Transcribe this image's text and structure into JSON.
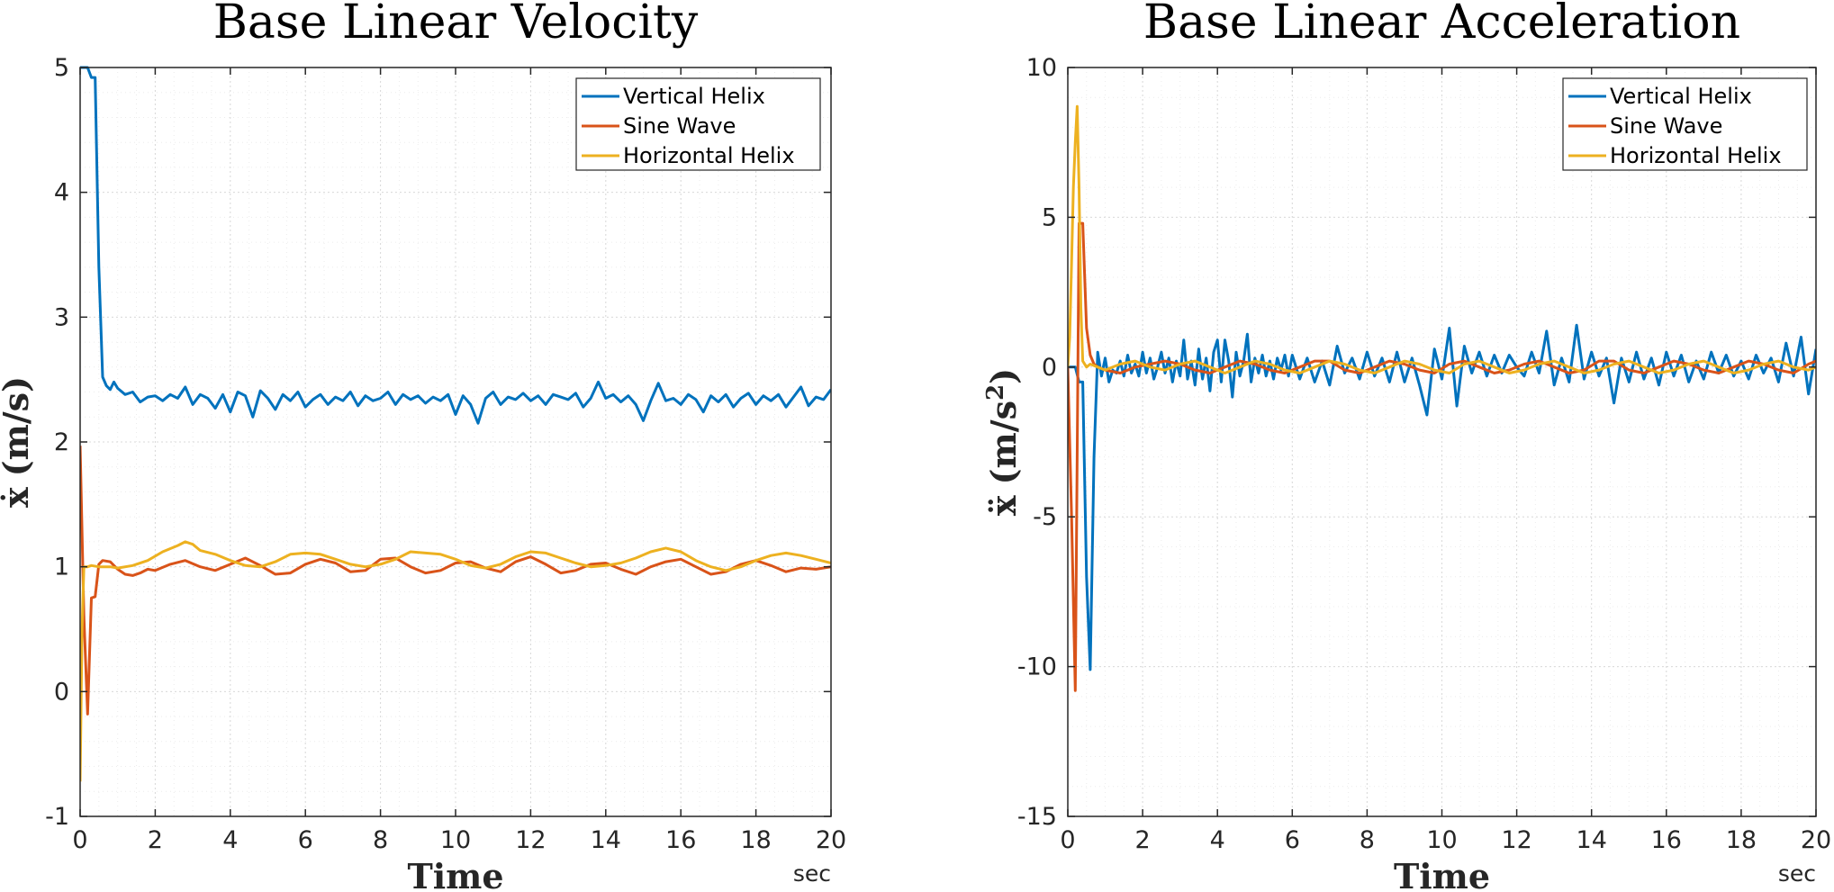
{
  "chart_data": [
    {
      "type": "line",
      "title": "Base Linear Velocity",
      "xlabel": "Time",
      "xunit": "sec",
      "ylabel_symbol": "ẋ",
      "ylabel_unit": "(m/s)",
      "xlim": [
        0,
        20
      ],
      "ylim": [
        -1,
        5
      ],
      "xticks": [
        0,
        2,
        4,
        6,
        8,
        10,
        12,
        14,
        16,
        18,
        20
      ],
      "yticks": [
        -1,
        0,
        1,
        2,
        3,
        4,
        5
      ],
      "grid": true,
      "legend_position": "top-right",
      "series": [
        {
          "name": "Vertical Helix",
          "color": "#0072BD",
          "x": [
            0,
            0.1,
            0.2,
            0.3,
            0.4,
            0.5,
            0.6,
            0.7,
            0.8,
            0.9,
            1.0,
            1.2,
            1.4,
            1.6,
            1.8,
            2.0,
            2.2,
            2.4,
            2.6,
            2.8,
            3.0,
            3.2,
            3.4,
            3.6,
            3.8,
            4.0,
            4.2,
            4.4,
            4.6,
            4.8,
            5.0,
            5.2,
            5.4,
            5.6,
            5.8,
            6.0,
            6.2,
            6.4,
            6.6,
            6.8,
            7.0,
            7.2,
            7.4,
            7.6,
            7.8,
            8.0,
            8.2,
            8.4,
            8.6,
            8.8,
            9.0,
            9.2,
            9.4,
            9.6,
            9.8,
            10.0,
            10.2,
            10.4,
            10.6,
            10.8,
            11.0,
            11.2,
            11.4,
            11.6,
            11.8,
            12.0,
            12.2,
            12.4,
            12.6,
            12.8,
            13.0,
            13.2,
            13.4,
            13.6,
            13.8,
            14.0,
            14.2,
            14.4,
            14.6,
            14.8,
            15.0,
            15.2,
            15.4,
            15.6,
            15.8,
            16.0,
            16.2,
            16.4,
            16.6,
            16.8,
            17.0,
            17.2,
            17.4,
            17.6,
            17.8,
            18.0,
            18.2,
            18.4,
            18.6,
            18.8,
            19.0,
            19.2,
            19.4,
            19.6,
            19.8,
            20.0
          ],
          "y": [
            5.0,
            5.0,
            5.0,
            4.92,
            4.92,
            3.4,
            2.52,
            2.45,
            2.42,
            2.48,
            2.43,
            2.38,
            2.4,
            2.32,
            2.36,
            2.37,
            2.33,
            2.38,
            2.35,
            2.44,
            2.3,
            2.38,
            2.35,
            2.27,
            2.38,
            2.24,
            2.4,
            2.37,
            2.2,
            2.41,
            2.35,
            2.26,
            2.38,
            2.33,
            2.4,
            2.28,
            2.34,
            2.38,
            2.3,
            2.36,
            2.33,
            2.4,
            2.29,
            2.37,
            2.33,
            2.35,
            2.4,
            2.3,
            2.38,
            2.34,
            2.37,
            2.31,
            2.36,
            2.33,
            2.38,
            2.22,
            2.37,
            2.3,
            2.15,
            2.35,
            2.4,
            2.3,
            2.36,
            2.34,
            2.39,
            2.33,
            2.37,
            2.3,
            2.38,
            2.36,
            2.34,
            2.39,
            2.28,
            2.35,
            2.48,
            2.35,
            2.38,
            2.32,
            2.37,
            2.3,
            2.17,
            2.33,
            2.47,
            2.33,
            2.35,
            2.3,
            2.38,
            2.34,
            2.24,
            2.37,
            2.32,
            2.38,
            2.28,
            2.35,
            2.39,
            2.3,
            2.37,
            2.33,
            2.38,
            2.28,
            2.36,
            2.44,
            2.29,
            2.36,
            2.34,
            2.42
          ]
        },
        {
          "name": "Sine Wave",
          "color": "#D95319",
          "x": [
            0,
            0.1,
            0.2,
            0.3,
            0.4,
            0.5,
            0.6,
            0.8,
            1.0,
            1.2,
            1.4,
            1.6,
            1.8,
            2.0,
            2.4,
            2.8,
            3.2,
            3.6,
            4.0,
            4.4,
            4.8,
            5.2,
            5.6,
            6.0,
            6.4,
            6.8,
            7.2,
            7.6,
            8.0,
            8.4,
            8.8,
            9.2,
            9.6,
            10.0,
            10.4,
            10.8,
            11.2,
            11.6,
            12.0,
            12.4,
            12.8,
            13.2,
            13.6,
            14.0,
            14.4,
            14.8,
            15.2,
            15.6,
            16.0,
            16.4,
            16.8,
            17.2,
            17.6,
            18.0,
            18.4,
            18.8,
            19.2,
            19.6,
            20.0
          ],
          "y": [
            1.97,
            0.6,
            -0.18,
            0.75,
            0.76,
            1.02,
            1.05,
            1.04,
            0.98,
            0.94,
            0.93,
            0.95,
            0.98,
            0.97,
            1.02,
            1.05,
            1.0,
            0.97,
            1.02,
            1.07,
            1.01,
            0.94,
            0.95,
            1.02,
            1.06,
            1.03,
            0.96,
            0.97,
            1.06,
            1.07,
            1.0,
            0.95,
            0.97,
            1.03,
            1.04,
            0.99,
            0.96,
            1.04,
            1.08,
            1.02,
            0.95,
            0.97,
            1.02,
            1.03,
            0.98,
            0.94,
            1.0,
            1.04,
            1.06,
            1.0,
            0.94,
            0.96,
            1.02,
            1.05,
            1.01,
            0.96,
            0.99,
            0.98,
            1.0
          ]
        },
        {
          "name": "Horizontal Helix",
          "color": "#EDB120",
          "x": [
            0,
            0.05,
            0.1,
            0.2,
            0.3,
            0.5,
            0.8,
            1.0,
            1.4,
            1.8,
            2.2,
            2.6,
            2.8,
            3.0,
            3.2,
            3.6,
            4.0,
            4.4,
            4.8,
            5.2,
            5.6,
            6.0,
            6.4,
            6.8,
            7.2,
            7.6,
            8.0,
            8.4,
            8.8,
            9.2,
            9.6,
            10.0,
            10.4,
            10.8,
            11.2,
            11.6,
            12.0,
            12.4,
            12.8,
            13.2,
            13.6,
            14.0,
            14.4,
            14.8,
            15.2,
            15.6,
            16.0,
            16.4,
            16.8,
            17.2,
            17.6,
            18.0,
            18.4,
            18.8,
            19.2,
            19.6,
            20.0
          ],
          "y": [
            -0.72,
            0.5,
            1.0,
            1.0,
            1.01,
            1.0,
            1.0,
            0.99,
            1.01,
            1.05,
            1.12,
            1.17,
            1.2,
            1.18,
            1.13,
            1.1,
            1.05,
            1.01,
            1.0,
            1.04,
            1.1,
            1.11,
            1.1,
            1.06,
            1.02,
            1.0,
            1.02,
            1.06,
            1.12,
            1.11,
            1.1,
            1.06,
            1.01,
            0.99,
            1.02,
            1.08,
            1.12,
            1.11,
            1.07,
            1.03,
            1.0,
            1.01,
            1.03,
            1.07,
            1.12,
            1.15,
            1.12,
            1.05,
            1.0,
            0.97,
            1.0,
            1.05,
            1.09,
            1.11,
            1.09,
            1.06,
            1.03
          ]
        }
      ]
    },
    {
      "type": "line",
      "title": "Base Linear Acceleration",
      "xlabel": "Time",
      "xunit": "sec",
      "ylabel_symbol": "ẍ",
      "ylabel_unit": "(m/s",
      "ylabel_unit_sup": "2",
      "ylabel_unit_close": ")",
      "xlim": [
        0,
        20
      ],
      "ylim": [
        -15,
        10
      ],
      "xticks": [
        0,
        2,
        4,
        6,
        8,
        10,
        12,
        14,
        16,
        18,
        20
      ],
      "yticks": [
        -15,
        -10,
        -5,
        0,
        5,
        10
      ],
      "grid": true,
      "legend_position": "top-right",
      "series": [
        {
          "name": "Vertical Helix",
          "color": "#0072BD",
          "x": [
            0,
            0.1,
            0.2,
            0.3,
            0.4,
            0.5,
            0.6,
            0.7,
            0.8,
            0.9,
            1.0,
            1.1,
            1.2,
            1.3,
            1.4,
            1.5,
            1.6,
            1.7,
            1.8,
            1.9,
            2.0,
            2.1,
            2.2,
            2.3,
            2.4,
            2.5,
            2.6,
            2.7,
            2.8,
            2.9,
            3.0,
            3.1,
            3.2,
            3.3,
            3.4,
            3.5,
            3.6,
            3.7,
            3.8,
            3.9,
            4.0,
            4.1,
            4.2,
            4.3,
            4.4,
            4.5,
            4.6,
            4.7,
            4.8,
            4.9,
            5.0,
            5.1,
            5.2,
            5.3,
            5.4,
            5.5,
            5.6,
            5.7,
            5.8,
            5.9,
            6.0,
            6.2,
            6.4,
            6.6,
            6.8,
            7.0,
            7.2,
            7.4,
            7.6,
            7.8,
            8.0,
            8.2,
            8.4,
            8.6,
            8.8,
            9.0,
            9.2,
            9.4,
            9.6,
            9.8,
            10.0,
            10.2,
            10.4,
            10.6,
            10.8,
            11.0,
            11.2,
            11.4,
            11.6,
            11.8,
            12.0,
            12.2,
            12.4,
            12.6,
            12.8,
            13.0,
            13.2,
            13.4,
            13.6,
            13.8,
            14.0,
            14.2,
            14.4,
            14.6,
            14.8,
            15.0,
            15.2,
            15.4,
            15.6,
            15.8,
            16.0,
            16.2,
            16.4,
            16.6,
            16.8,
            17.0,
            17.2,
            17.4,
            17.6,
            17.8,
            18.0,
            18.2,
            18.4,
            18.6,
            18.8,
            19.0,
            19.2,
            19.4,
            19.6,
            19.8,
            20.0
          ],
          "y": [
            0,
            0,
            0,
            -0.5,
            -0.5,
            -7.0,
            -10.1,
            -3.0,
            0.5,
            -0.3,
            0.3,
            -0.5,
            -0.1,
            -0.2,
            0.2,
            -0.3,
            0.4,
            -0.2,
            0.1,
            -0.3,
            0.5,
            -0.2,
            0.3,
            -0.4,
            0.0,
            0.5,
            -0.2,
            0.3,
            -0.5,
            0.2,
            -0.3,
            0.9,
            -0.4,
            0.2,
            -0.6,
            0.6,
            -0.4,
            0.3,
            -0.8,
            0.5,
            0.9,
            -0.5,
            0.9,
            0.2,
            -1.0,
            0.5,
            -0.3,
            0.2,
            1.1,
            -0.5,
            0.3,
            -0.2,
            0.4,
            -0.3,
            0.2,
            -0.4,
            0.3,
            -0.1,
            0.4,
            -0.3,
            0.4,
            -0.4,
            0.3,
            -0.5,
            0.2,
            -0.6,
            0.7,
            -0.2,
            0.3,
            -0.4,
            0.5,
            -0.3,
            0.3,
            -0.5,
            0.5,
            -0.5,
            0.3,
            -0.6,
            -1.6,
            0.6,
            -0.4,
            1.3,
            -1.3,
            0.7,
            -0.2,
            0.5,
            -0.3,
            0.4,
            -0.2,
            0.4,
            0.0,
            -0.3,
            0.5,
            -0.2,
            1.2,
            -0.6,
            0.3,
            -0.5,
            1.4,
            -0.4,
            0.5,
            -0.3,
            0.3,
            -1.2,
            0.3,
            -0.5,
            0.5,
            -0.4,
            0.3,
            -0.6,
            0.5,
            -0.3,
            0.4,
            -0.5,
            0.2,
            -0.4,
            0.5,
            -0.2,
            0.4,
            -0.3,
            0.2,
            -0.4,
            0.4,
            -0.2,
            0.3,
            -0.5,
            0.8,
            -0.3,
            1.0,
            -0.9,
            0.6
          ]
        },
        {
          "name": "Sine Wave",
          "color": "#D95319",
          "x": [
            0,
            0.1,
            0.2,
            0.3,
            0.4,
            0.5,
            0.6,
            0.7,
            0.8,
            1.0,
            1.4,
            1.8,
            2.2,
            2.6,
            3.0,
            3.4,
            3.8,
            4.2,
            4.6,
            5.0,
            5.4,
            5.8,
            6.2,
            6.6,
            7.0,
            7.4,
            7.8,
            8.2,
            8.6,
            9.0,
            9.4,
            9.8,
            10.2,
            10.6,
            11.0,
            11.4,
            11.8,
            12.2,
            12.6,
            13.0,
            13.4,
            13.8,
            14.2,
            14.6,
            15.0,
            15.4,
            15.8,
            16.2,
            16.6,
            17.0,
            17.4,
            17.8,
            18.2,
            18.6,
            19.0,
            19.4,
            19.8,
            20.0
          ],
          "y": [
            0,
            -5.0,
            -10.8,
            4.8,
            4.8,
            1.3,
            0.4,
            0.1,
            0.0,
            -0.1,
            -0.2,
            0.0,
            0.1,
            0.2,
            0.1,
            -0.1,
            -0.2,
            0.0,
            0.2,
            0.1,
            -0.1,
            -0.2,
            0.0,
            0.2,
            0.2,
            -0.1,
            -0.2,
            0.0,
            0.2,
            0.1,
            -0.1,
            -0.2,
            0.1,
            0.2,
            0.0,
            -0.2,
            -0.1,
            0.1,
            0.2,
            0.0,
            -0.2,
            -0.1,
            0.2,
            0.2,
            -0.1,
            -0.2,
            0.0,
            0.2,
            0.1,
            -0.1,
            -0.2,
            0.0,
            0.2,
            0.1,
            -0.1,
            -0.2,
            0.1,
            0.2
          ]
        },
        {
          "name": "Horizontal Helix",
          "color": "#EDB120",
          "x": [
            0,
            0.05,
            0.1,
            0.15,
            0.2,
            0.25,
            0.3,
            0.35,
            0.4,
            0.5,
            0.6,
            0.8,
            1.0,
            1.4,
            1.8,
            2.2,
            2.6,
            3.0,
            3.4,
            3.8,
            4.2,
            4.6,
            5.0,
            5.4,
            5.8,
            6.2,
            6.6,
            7.0,
            7.4,
            7.8,
            8.2,
            8.6,
            9.0,
            9.4,
            9.8,
            10.2,
            10.6,
            11.0,
            11.4,
            11.8,
            12.2,
            12.6,
            13.0,
            13.4,
            13.8,
            14.2,
            14.6,
            15.0,
            15.4,
            15.8,
            16.2,
            16.6,
            17.0,
            17.4,
            17.8,
            18.2,
            18.6,
            19.0,
            19.4,
            19.8,
            20.0
          ],
          "y": [
            0,
            1.0,
            3.5,
            6.0,
            7.5,
            8.7,
            6.0,
            2.0,
            0.2,
            0.0,
            0.1,
            0.0,
            -0.1,
            0.1,
            0.2,
            0.0,
            -0.1,
            0.1,
            0.2,
            0.0,
            -0.2,
            0.0,
            0.2,
            0.1,
            -0.1,
            -0.2,
            0.0,
            0.2,
            0.1,
            -0.1,
            -0.2,
            0.0,
            0.2,
            0.1,
            -0.1,
            -0.2,
            0.1,
            0.2,
            0.0,
            -0.2,
            -0.1,
            0.1,
            0.2,
            0.0,
            -0.2,
            -0.1,
            0.1,
            0.2,
            0.0,
            -0.2,
            -0.1,
            0.1,
            0.2,
            0.0,
            -0.2,
            -0.1,
            0.1,
            0.2,
            0.0,
            -0.1,
            0.0
          ]
        }
      ]
    }
  ]
}
